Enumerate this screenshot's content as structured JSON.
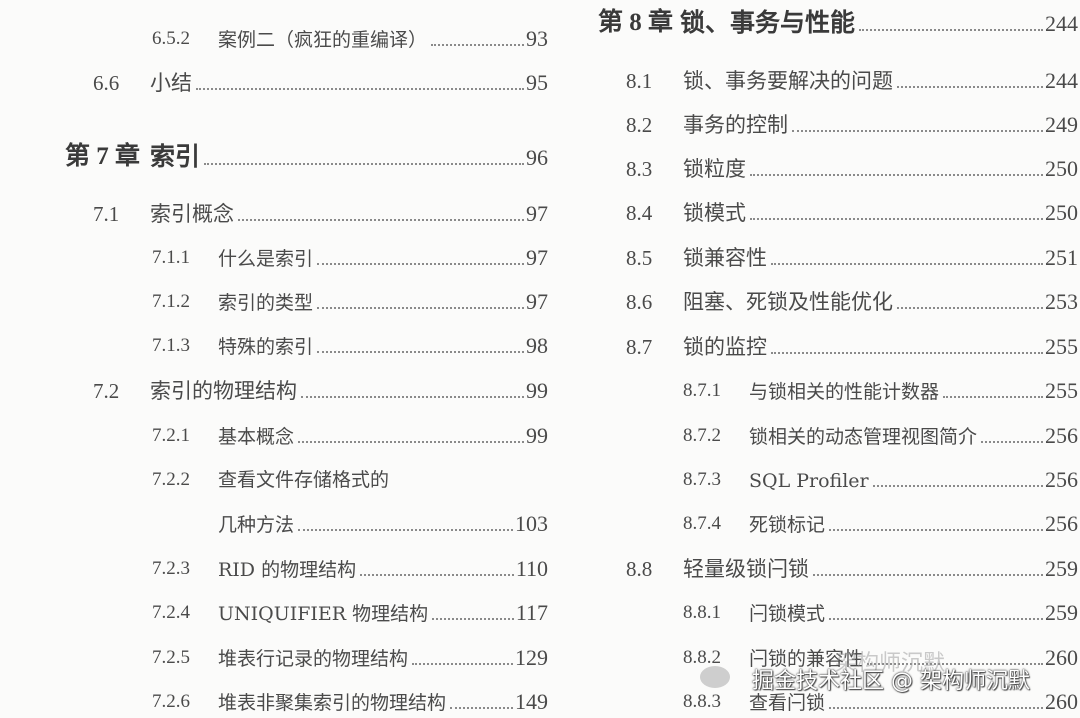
{
  "left": [
    {
      "level": "l2",
      "num": "6.5.2",
      "title": "案例二（疯狂的重编译）",
      "page": "93"
    },
    {
      "level": "l1",
      "num": "6.6",
      "title": "小结",
      "page": "95"
    },
    {
      "level": "chap",
      "num": "第 7 章",
      "title": "索引",
      "page": "96"
    },
    {
      "level": "l1",
      "num": "7.1",
      "title": "索引概念",
      "page": "97"
    },
    {
      "level": "l2",
      "num": "7.1.1",
      "title": "什么是索引",
      "page": "97"
    },
    {
      "level": "l2",
      "num": "7.1.2",
      "title": "索引的类型",
      "page": "97"
    },
    {
      "level": "l2",
      "num": "7.1.3",
      "title": "特殊的索引",
      "page": "98"
    },
    {
      "level": "l1",
      "num": "7.2",
      "title": "索引的物理结构",
      "page": "99"
    },
    {
      "level": "l2",
      "num": "7.2.1",
      "title": "基本概念",
      "page": "99"
    },
    {
      "level": "l2",
      "num": "7.2.2",
      "title": "查看文件存储格式的",
      "page": ""
    },
    {
      "level": "l2",
      "num": "",
      "title": "几种方法",
      "page": "103"
    },
    {
      "level": "l2",
      "num": "7.2.3",
      "title": "RID 的物理结构",
      "page": "110"
    },
    {
      "level": "l2",
      "num": "7.2.4",
      "title": "UNIQUIFIER 物理结构",
      "page": "117"
    },
    {
      "level": "l2",
      "num": "7.2.5",
      "title": "堆表行记录的物理结构",
      "page": "129"
    },
    {
      "level": "l2",
      "num": "7.2.6",
      "title": "堆表非聚集索引的物理结构",
      "page": "149"
    }
  ],
  "right": [
    {
      "level": "chap",
      "num": "第 8 章",
      "title": "锁、事务与性能",
      "page": "244"
    },
    {
      "level": "l1",
      "num": "8.1",
      "title": "锁、事务要解决的问题",
      "page": "244"
    },
    {
      "level": "l1",
      "num": "8.2",
      "title": "事务的控制",
      "page": "249"
    },
    {
      "level": "l1",
      "num": "8.3",
      "title": "锁粒度",
      "page": "250"
    },
    {
      "level": "l1",
      "num": "8.4",
      "title": "锁模式",
      "page": "250"
    },
    {
      "level": "l1",
      "num": "8.5",
      "title": "锁兼容性",
      "page": "251"
    },
    {
      "level": "l1",
      "num": "8.6",
      "title": "阻塞、死锁及性能优化",
      "page": "253"
    },
    {
      "level": "l1",
      "num": "8.7",
      "title": "锁的监控",
      "page": "255"
    },
    {
      "level": "l2",
      "num": "8.7.1",
      "title": "与锁相关的性能计数器",
      "page": "255"
    },
    {
      "level": "l2",
      "num": "8.7.2",
      "title": "锁相关的动态管理视图简介",
      "page": "256"
    },
    {
      "level": "l2",
      "num": "8.7.3",
      "title": "SQL Profiler",
      "page": "256"
    },
    {
      "level": "l2",
      "num": "8.7.4",
      "title": "死锁标记",
      "page": "256"
    },
    {
      "level": "l1",
      "num": "8.8",
      "title": "轻量级锁闩锁",
      "page": "259"
    },
    {
      "level": "l2",
      "num": "8.8.1",
      "title": "闩锁模式",
      "page": "259"
    },
    {
      "level": "l2",
      "num": "8.8.2",
      "title": "闩锁的兼容性",
      "page": "260"
    },
    {
      "level": "l2",
      "num": "8.8.3",
      "title": "查看闩锁",
      "page": "260"
    }
  ],
  "watermark": {
    "text": "掘金技术社区 @ 架构师沉默",
    "faint_text": "架构师沉默",
    "icon": "wechat-icon"
  }
}
